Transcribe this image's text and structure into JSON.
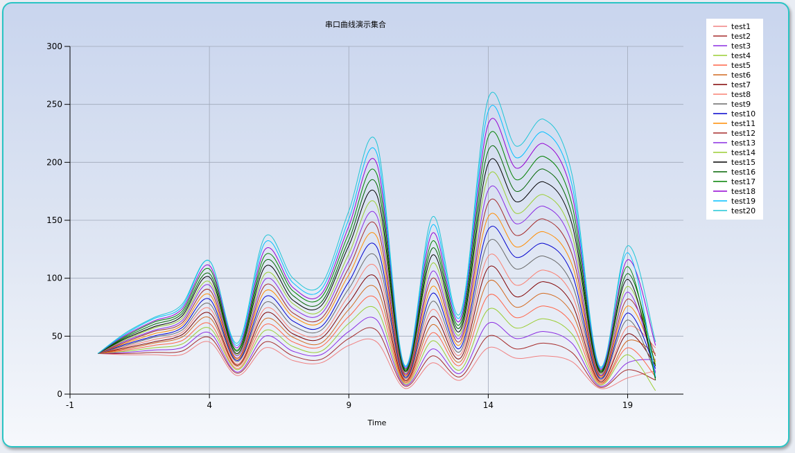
{
  "chart_data": {
    "type": "line",
    "title": "串口曲线演示集合",
    "xlabel": "Time",
    "ylabel": "",
    "xlim": [
      -1,
      21
    ],
    "ylim": [
      0,
      300
    ],
    "xticks": [
      -1,
      4,
      9,
      14,
      19
    ],
    "yticks": [
      0,
      50,
      100,
      150,
      200,
      250,
      300
    ],
    "grid": true,
    "legend_position": "top-right",
    "x": [
      0,
      1,
      2,
      3,
      4,
      5,
      6,
      7,
      8,
      9,
      10,
      11,
      12,
      13,
      14,
      15,
      16,
      17,
      18,
      19,
      20
    ],
    "series": [
      {
        "name": "test1",
        "color": "#f08080",
        "values": [
          35,
          34,
          34,
          34,
          45,
          16,
          40,
          29,
          27,
          42,
          45,
          5,
          27,
          12,
          40,
          31,
          33,
          28,
          5,
          14,
          20
        ]
      },
      {
        "name": "test2",
        "color": "#a52a2a",
        "values": [
          35,
          35,
          36,
          37,
          49,
          18,
          45,
          33,
          30,
          48,
          55,
          7,
          33,
          15,
          50,
          39,
          44,
          36,
          6,
          21,
          12
        ]
      },
      {
        "name": "test3",
        "color": "#8a2be2",
        "values": [
          35,
          36,
          38,
          40,
          53,
          19,
          50,
          37,
          34,
          54,
          64,
          8,
          39,
          18,
          61,
          48,
          54,
          44,
          7,
          27,
          30
        ]
      },
      {
        "name": "test4",
        "color": "#9acd32",
        "values": [
          35,
          37,
          40,
          43,
          57,
          21,
          55,
          41,
          37,
          61,
          73,
          9,
          46,
          21,
          73,
          57,
          65,
          52,
          8,
          34,
          3
        ]
      },
      {
        "name": "test5",
        "color": "#ff6347",
        "values": [
          35,
          38,
          42,
          46,
          61,
          22,
          60,
          45,
          41,
          67,
          82,
          10,
          53,
          25,
          85,
          66,
          76,
          61,
          9,
          40,
          15
        ]
      },
      {
        "name": "test6",
        "color": "#d2691e",
        "values": [
          35,
          39,
          44,
          49,
          66,
          24,
          65,
          49,
          44,
          73,
          91,
          11,
          60,
          28,
          97,
          75,
          87,
          70,
          10,
          46,
          35
        ]
      },
      {
        "name": "test7",
        "color": "#800000",
        "values": [
          35,
          40,
          45,
          51,
          70,
          25,
          70,
          52,
          48,
          79,
          100,
          12,
          67,
          31,
          109,
          84,
          97,
          78,
          11,
          52,
          25
        ]
      },
      {
        "name": "test8",
        "color": "#fa8072",
        "values": [
          35,
          41,
          47,
          53,
          74,
          26,
          74,
          55,
          51,
          85,
          109,
          13,
          73,
          34,
          119,
          94,
          107,
          86,
          12,
          58,
          40
        ]
      },
      {
        "name": "test9",
        "color": "#696969",
        "values": [
          35,
          42,
          49,
          55,
          78,
          28,
          79,
          59,
          55,
          91,
          118,
          14,
          80,
          37,
          131,
          108,
          119,
          95,
          13,
          64,
          18
        ]
      },
      {
        "name": "test10",
        "color": "#0000cd",
        "values": [
          35,
          43,
          50,
          57,
          82,
          29,
          84,
          63,
          58,
          97,
          127,
          15,
          87,
          40,
          142,
          118,
          130,
          104,
          14,
          70,
          22
        ]
      },
      {
        "name": "test11",
        "color": "#ff8c00",
        "values": [
          35,
          44,
          52,
          59,
          86,
          30,
          89,
          67,
          62,
          103,
          136,
          16,
          93,
          43,
          153,
          127,
          140,
          112,
          15,
          76,
          28
        ]
      },
      {
        "name": "test12",
        "color": "#a52a2a",
        "values": [
          35,
          45,
          54,
          61,
          90,
          31,
          94,
          70,
          65,
          109,
          145,
          17,
          100,
          46,
          165,
          137,
          151,
          121,
          16,
          82,
          33
        ]
      },
      {
        "name": "test13",
        "color": "#8a2be2",
        "values": [
          35,
          46,
          55,
          63,
          94,
          33,
          99,
          74,
          69,
          115,
          154,
          18,
          106,
          49,
          176,
          147,
          162,
          130,
          17,
          88,
          19
        ]
      },
      {
        "name": "test14",
        "color": "#9acd32",
        "values": [
          35,
          47,
          57,
          65,
          97,
          34,
          104,
          78,
          72,
          121,
          163,
          19,
          113,
          52,
          188,
          156,
          172,
          138,
          18,
          93,
          26
        ]
      },
      {
        "name": "test15",
        "color": "#000000",
        "values": [
          35,
          48,
          58,
          67,
          101,
          35,
          110,
          81,
          76,
          128,
          172,
          20,
          120,
          55,
          199,
          166,
          183,
          147,
          19,
          99,
          14
        ]
      },
      {
        "name": "test16",
        "color": "#006400",
        "values": [
          35,
          49,
          60,
          69,
          104,
          37,
          115,
          85,
          79,
          133,
          181,
          21,
          126,
          58,
          210,
          175,
          194,
          155,
          20,
          104,
          24
        ]
      },
      {
        "name": "test17",
        "color": "#008000",
        "values": [
          35,
          50,
          62,
          71,
          108,
          38,
          120,
          89,
          83,
          139,
          190,
          22,
          132,
          61,
          222,
          185,
          205,
          164,
          21,
          110,
          12
        ]
      },
      {
        "name": "test18",
        "color": "#9400d3",
        "values": [
          35,
          51,
          63,
          73,
          111,
          40,
          125,
          92,
          86,
          145,
          199,
          23,
          139,
          64,
          233,
          195,
          216,
          173,
          22,
          116,
          42
        ]
      },
      {
        "name": "test19",
        "color": "#00bfff",
        "values": [
          35,
          52,
          65,
          75,
          115,
          42,
          131,
          96,
          90,
          151,
          208,
          24,
          146,
          67,
          244,
          204,
          226,
          181,
          23,
          122,
          15
        ]
      },
      {
        "name": "test20",
        "color": "#20c5d6",
        "values": [
          35,
          53,
          66,
          77,
          115,
          44,
          136,
          100,
          94,
          158,
          217,
          25,
          153,
          70,
          255,
          214,
          237,
          190,
          24,
          128,
          45
        ]
      }
    ]
  }
}
